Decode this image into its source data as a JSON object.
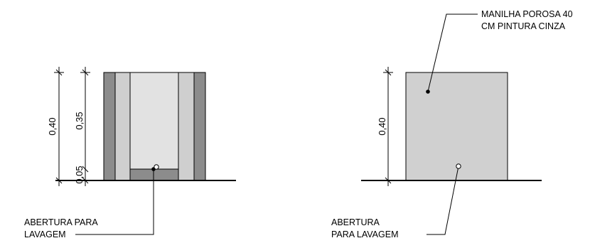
{
  "section_view": {
    "dimensions": {
      "outer_height": "0,40",
      "inner_height": "0,35",
      "base_height": "0,05"
    },
    "label_opening": [
      "ABERTURA PARA",
      "LAVAGEM"
    ]
  },
  "elevation_view": {
    "dimensions": {
      "height": "0,40"
    },
    "label_pipe": [
      "MANILHA POROSA 40",
      "CM  PINTURA CINZA"
    ],
    "label_opening": [
      "ABERTURA",
      "PARA LAVAGEM"
    ]
  },
  "colors": {
    "outer_wall": "#8c8c8c",
    "inner_wall": "#cfcfcf",
    "core": "#e2e2e2",
    "base": "#8c8c8c",
    "elevation_fill": "#d0d0d0"
  }
}
